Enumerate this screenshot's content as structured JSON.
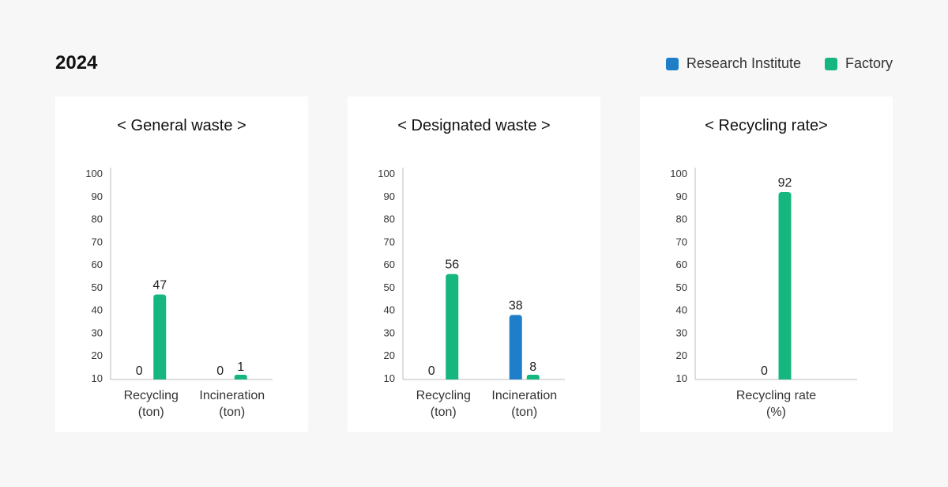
{
  "header": {
    "year": "2024",
    "legend": [
      {
        "label": "Research Institute",
        "color": "#1e7ec8"
      },
      {
        "label": "Factory",
        "color": "#15b77e"
      }
    ]
  },
  "chart_data": [
    {
      "type": "bar",
      "title": "< General waste >",
      "yticks": [
        10,
        20,
        30,
        40,
        50,
        60,
        70,
        80,
        90,
        100
      ],
      "ylim": [
        0,
        100
      ],
      "categories": [
        [
          "Recycling",
          "(ton)"
        ],
        [
          "Incineration",
          "(ton)"
        ]
      ],
      "series": [
        {
          "name": "Research Institute",
          "values": [
            0,
            0
          ]
        },
        {
          "name": "Factory",
          "values": [
            47,
            1
          ]
        }
      ]
    },
    {
      "type": "bar",
      "title": "< Designated waste >",
      "yticks": [
        10,
        20,
        30,
        40,
        50,
        60,
        70,
        80,
        90,
        100
      ],
      "ylim": [
        0,
        100
      ],
      "categories": [
        [
          "Recycling",
          "(ton)"
        ],
        [
          "Incineration",
          "(ton)"
        ]
      ],
      "series": [
        {
          "name": "Research Institute",
          "values": [
            0,
            38
          ]
        },
        {
          "name": "Factory",
          "values": [
            56,
            8
          ]
        }
      ]
    },
    {
      "type": "bar",
      "title": "< Recycling rate>",
      "yticks": [
        10,
        20,
        30,
        40,
        50,
        60,
        70,
        80,
        90,
        100
      ],
      "ylim": [
        0,
        100
      ],
      "categories": [
        [
          "Recycling rate",
          "(%)"
        ]
      ],
      "series": [
        {
          "name": "Research Institute",
          "values": [
            0
          ]
        },
        {
          "name": "Factory",
          "values": [
            92
          ]
        }
      ]
    }
  ]
}
